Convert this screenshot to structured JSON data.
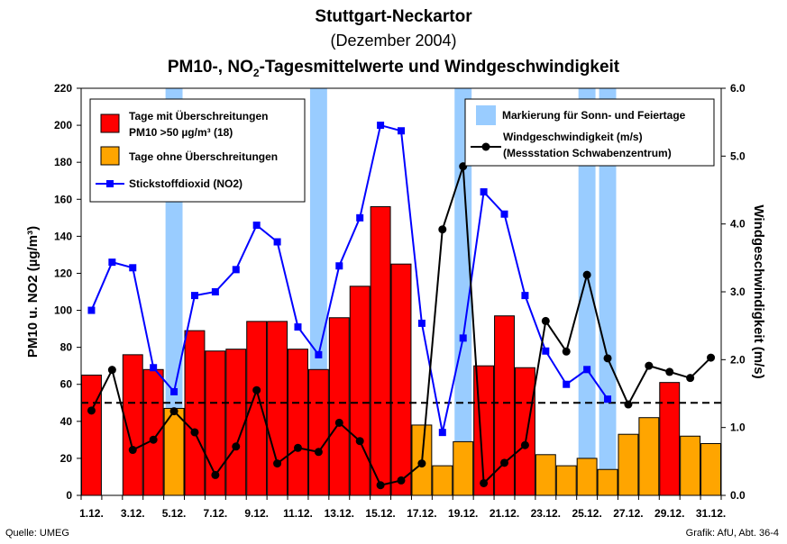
{
  "title": "Stuttgart-Neckartor",
  "subtitle": "(Dezember 2004)",
  "title2_a": "PM10-, NO",
  "title2_sub": "2",
  "title2_b": "-Tagesmittelwerte und Windgeschwindigkeit",
  "source": "Quelle: UMEG",
  "credit": "Grafik: AfU, Abt. 36-4",
  "colors": {
    "exceed": "#ff0000",
    "no_exceed": "#ffa500",
    "no2": "#0000ff",
    "wind": "#000000",
    "weekend": "#99ccff"
  },
  "chart_data": {
    "type": "bar",
    "x": [
      1,
      2,
      3,
      4,
      5,
      6,
      7,
      8,
      9,
      10,
      11,
      12,
      13,
      14,
      15,
      16,
      17,
      18,
      19,
      20,
      21,
      22,
      23,
      24,
      25,
      26,
      27,
      28,
      29,
      30,
      31
    ],
    "tick_labels": [
      "1.12.",
      "3.12.",
      "5.12.",
      "7.12.",
      "9.12.",
      "11.12.",
      "13.12.",
      "15.12.",
      "17.12.",
      "19.12.",
      "21.12.",
      "23.12.",
      "25.12.",
      "27.12.",
      "29.12.",
      "31.12."
    ],
    "tick_days": [
      1,
      3,
      5,
      7,
      9,
      11,
      13,
      15,
      17,
      19,
      21,
      23,
      25,
      27,
      29,
      31
    ],
    "ylabel": "PM10 u. NO2 (µg/m³)",
    "y2label": "Windgeschwindigkeit (m/s)",
    "ylim": [
      0,
      220
    ],
    "yticks": [
      0,
      20,
      40,
      60,
      80,
      100,
      120,
      140,
      160,
      180,
      200,
      220
    ],
    "y2lim": [
      0,
      6
    ],
    "y2ticks": [
      "0.0",
      "1.0",
      "2.0",
      "3.0",
      "4.0",
      "5.0",
      "6.0"
    ],
    "limit_line": 50,
    "weekend_days": [
      5,
      12,
      19,
      25,
      26
    ],
    "pm10": [
      65,
      null,
      76,
      68,
      47,
      89,
      78,
      79,
      94,
      94,
      79,
      68,
      96,
      113,
      156,
      125,
      38,
      16,
      29,
      70,
      97,
      69,
      22,
      16,
      20,
      14,
      33,
      42,
      61,
      32,
      28
    ],
    "pm10_exceed": [
      true,
      false,
      true,
      true,
      false,
      true,
      true,
      true,
      true,
      true,
      true,
      true,
      true,
      true,
      true,
      true,
      false,
      false,
      false,
      true,
      true,
      true,
      false,
      false,
      false,
      false,
      false,
      false,
      true,
      false,
      false
    ],
    "no2": [
      100,
      126,
      123,
      69,
      56,
      108,
      110,
      122,
      146,
      137,
      91,
      76,
      124,
      150,
      200,
      197,
      93,
      34,
      85,
      164,
      152,
      108,
      78,
      60,
      68,
      52,
      null,
      null,
      null,
      null,
      null
    ],
    "wind": [
      1.25,
      1.85,
      0.67,
      0.82,
      1.24,
      0.93,
      0.3,
      0.72,
      1.55,
      0.47,
      0.7,
      0.64,
      1.07,
      0.8,
      0.15,
      0.22,
      0.47,
      3.92,
      4.85,
      0.18,
      0.48,
      0.74,
      2.57,
      2.12,
      3.25,
      2.02,
      1.34,
      1.91,
      1.82,
      1.73,
      2.03
    ],
    "legend_left": [
      {
        "label": "Tage mit Überschreitungen",
        "label2": "PM10 >50 µg/m³ (18)"
      },
      {
        "label": "Tage ohne Überschreitungen"
      },
      {
        "label": "Stickstoffdioxid (NO2)"
      }
    ],
    "legend_right": [
      {
        "label": "Markierung für Sonn- und Feiertage"
      },
      {
        "label": "Windgeschwindigkeit (m/s)",
        "label2": "(Messstation Schwabenzentrum)"
      }
    ]
  }
}
